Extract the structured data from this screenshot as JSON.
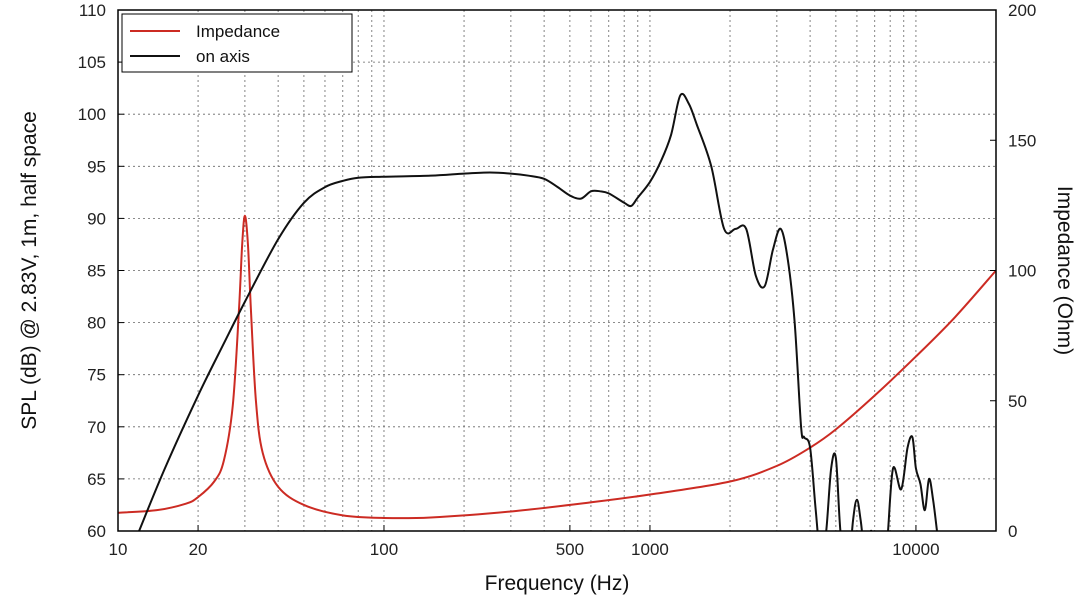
{
  "chart_data": {
    "type": "line",
    "xlabel": "Frequency (Hz)",
    "ylabel": "SPL (dB) @ 2.83V, 1m, half space",
    "y2label": "Impedance (Ohm)",
    "x_scale": "log",
    "xlim": [
      10,
      20000
    ],
    "ylim": [
      60,
      110
    ],
    "y2lim": [
      0,
      200
    ],
    "grid": true,
    "legend_position": "top-left",
    "x_ticks": [
      "10",
      "20",
      "100",
      "500",
      "1000",
      "10000"
    ],
    "y_ticks": [
      "60",
      "65",
      "70",
      "75",
      "80",
      "85",
      "90",
      "95",
      "100",
      "105",
      "110"
    ],
    "y2_ticks": [
      "0",
      "50",
      "100",
      "150",
      "200"
    ],
    "series": [
      {
        "name": "Impedance",
        "color": "#cc2b23",
        "axis": "right",
        "x": [
          10,
          14,
          18,
          20,
          23,
          25,
          27,
          28.5,
          29.3,
          30,
          30.8,
          31.6,
          33,
          35,
          40,
          50,
          70,
          100,
          150,
          300,
          600,
          1000,
          2000,
          3000,
          4000,
          5000,
          7000,
          10000,
          14000,
          20000
        ],
        "values": [
          7,
          8,
          10.5,
          13,
          19,
          27,
          48,
          85,
          110,
          121,
          110,
          85,
          50,
          30,
          17,
          10,
          6,
          5,
          5.2,
          7.5,
          11,
          14,
          19,
          25,
          32,
          39,
          52,
          67,
          82,
          100
        ]
      },
      {
        "name": "on axis",
        "color": "#111111",
        "axis": "left",
        "x": [
          12,
          15,
          20,
          25,
          30,
          40,
          50,
          60,
          70,
          80,
          100,
          150,
          200,
          250,
          300,
          350,
          400,
          450,
          500,
          550,
          600,
          650,
          700,
          800,
          850,
          900,
          1000,
          1100,
          1200,
          1300,
          1400,
          1500,
          1700,
          1900,
          2100,
          2300,
          2500,
          2700,
          2900,
          3100,
          3300,
          3500,
          3700,
          3800,
          4000,
          4200,
          4400,
          4600,
          4800,
          5000,
          5200,
          5500,
          5800,
          6000,
          6200,
          6500,
          6800,
          7200,
          7500,
          7800,
          8200,
          8800,
          9300,
          9700,
          10000,
          10400,
          10800,
          11200,
          11600,
          12000
        ],
        "values": [
          60,
          66,
          73,
          78,
          82,
          88,
          91.5,
          93,
          93.6,
          93.9,
          94,
          94.1,
          94.3,
          94.4,
          94.3,
          94.1,
          93.8,
          93,
          92.2,
          91.9,
          92.6,
          92.6,
          92.4,
          91.5,
          91.2,
          92,
          93.5,
          95.5,
          98,
          101.8,
          101,
          99,
          95,
          89,
          89,
          89,
          84.5,
          83.5,
          87,
          89,
          86,
          80,
          70,
          69,
          68,
          62,
          57,
          60,
          66,
          67,
          60,
          55,
          61,
          63,
          61,
          57,
          60,
          55,
          56,
          59,
          66,
          64,
          68,
          69,
          66,
          64.5,
          62,
          65,
          63,
          60
        ]
      }
    ]
  }
}
